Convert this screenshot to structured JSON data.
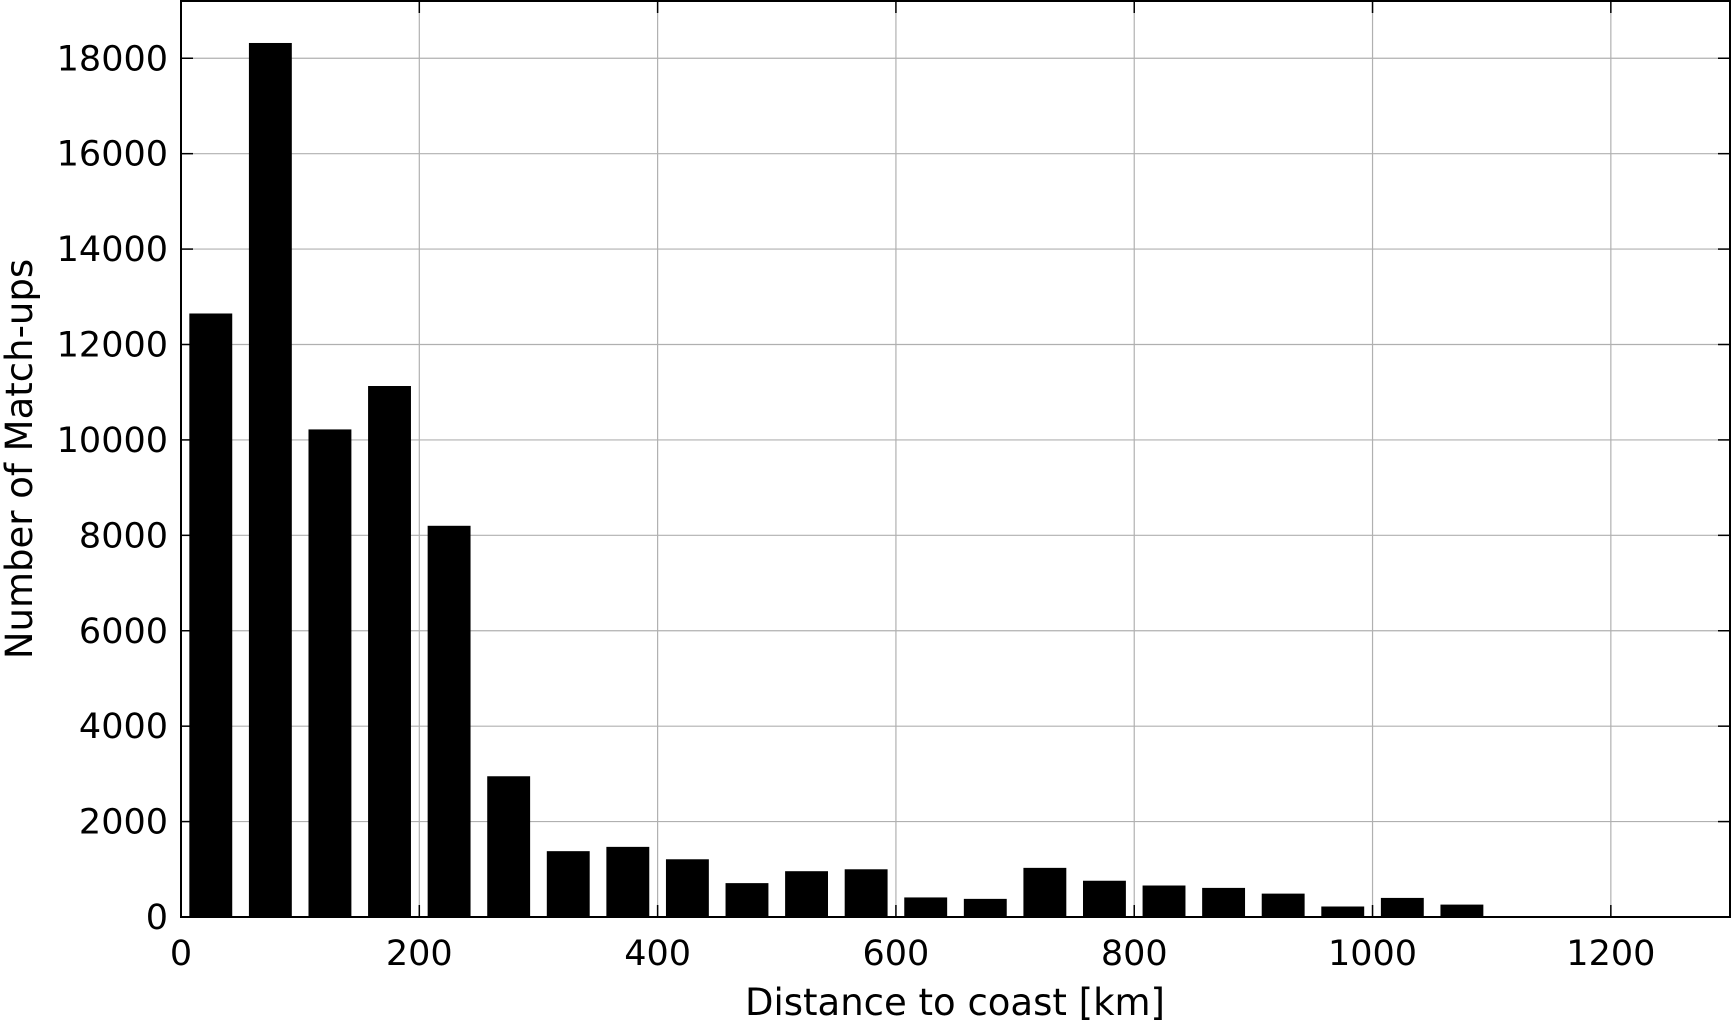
{
  "chart_data": {
    "type": "bar",
    "title": "",
    "xlabel": "Distance to coast [km]",
    "ylabel": "Number of Match-ups",
    "xlim": [
      0,
      1300
    ],
    "ylim": [
      0,
      19200
    ],
    "x_ticks": [
      "0",
      "200",
      "400",
      "600",
      "800",
      "1000",
      "1200"
    ],
    "x_tick_values": [
      0,
      200,
      400,
      600,
      800,
      1000,
      1200
    ],
    "y_ticks": [
      "0",
      "2000",
      "4000",
      "6000",
      "8000",
      "10000",
      "12000",
      "14000",
      "16000",
      "18000"
    ],
    "y_tick_values": [
      0,
      2000,
      4000,
      6000,
      8000,
      10000,
      12000,
      14000,
      16000,
      18000
    ],
    "grid": true,
    "bar_color": "#000000",
    "bin_width": 50,
    "bar_width_data": 36,
    "bin_centers": [
      25,
      75,
      125,
      175,
      225,
      275,
      325,
      375,
      425,
      475,
      525,
      575,
      625,
      675,
      725,
      775,
      825,
      875,
      925,
      975,
      1025,
      1075
    ],
    "values": [
      12650,
      18320,
      10220,
      11130,
      8200,
      2950,
      1380,
      1470,
      1210,
      710,
      960,
      1000,
      410,
      380,
      1030,
      760,
      660,
      610,
      490,
      220,
      400,
      260
    ]
  }
}
